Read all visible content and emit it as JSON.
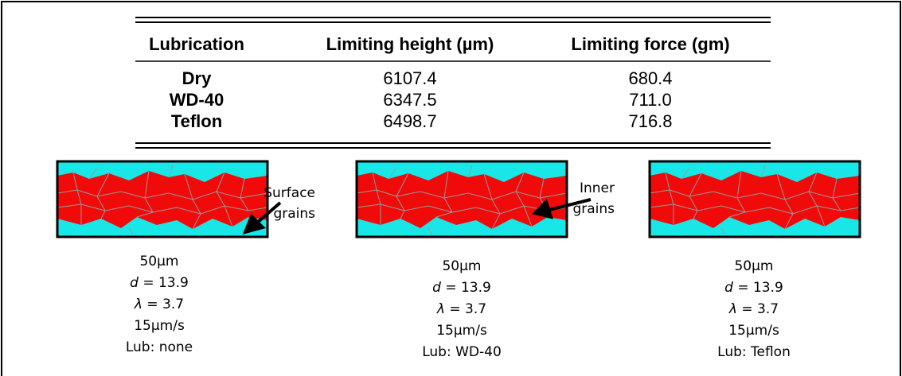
{
  "table": {
    "header": [
      "Lubrication",
      "Limiting height (µm)",
      "Limiting force (gm)"
    ],
    "rows": [
      [
        "Dry",
        "6107.4",
        "680.4"
      ],
      [
        "WD-40",
        "6347.5",
        "711.0"
      ],
      [
        "Teflon",
        "6498.7",
        "716.8"
      ]
    ]
  },
  "annotations": [
    {
      "lines": [
        "Surface",
        "grains"
      ]
    },
    {
      "lines": [
        "Inner",
        "grains"
      ]
    }
  ],
  "panels": [
    {
      "scale": "50µm",
      "d_symbol": "d",
      "d_text": " = 13.9",
      "lambda_symbol": "λ",
      "lambda_text": " = 3.7",
      "speed": "15µm/s",
      "lub": "Lub: none"
    },
    {
      "scale": "50µm",
      "d_symbol": "d",
      "d_text": " = 13.9",
      "lambda_symbol": "λ",
      "lambda_text": " = 3.7",
      "speed": "15µm/s",
      "lub": "Lub: WD-40"
    },
    {
      "scale": "50µm",
      "d_symbol": "d",
      "d_text": " = 13.9",
      "lambda_symbol": "λ",
      "lambda_text": " = 3.7",
      "speed": "15µm/s",
      "lub": "Lub: Teflon"
    }
  ]
}
